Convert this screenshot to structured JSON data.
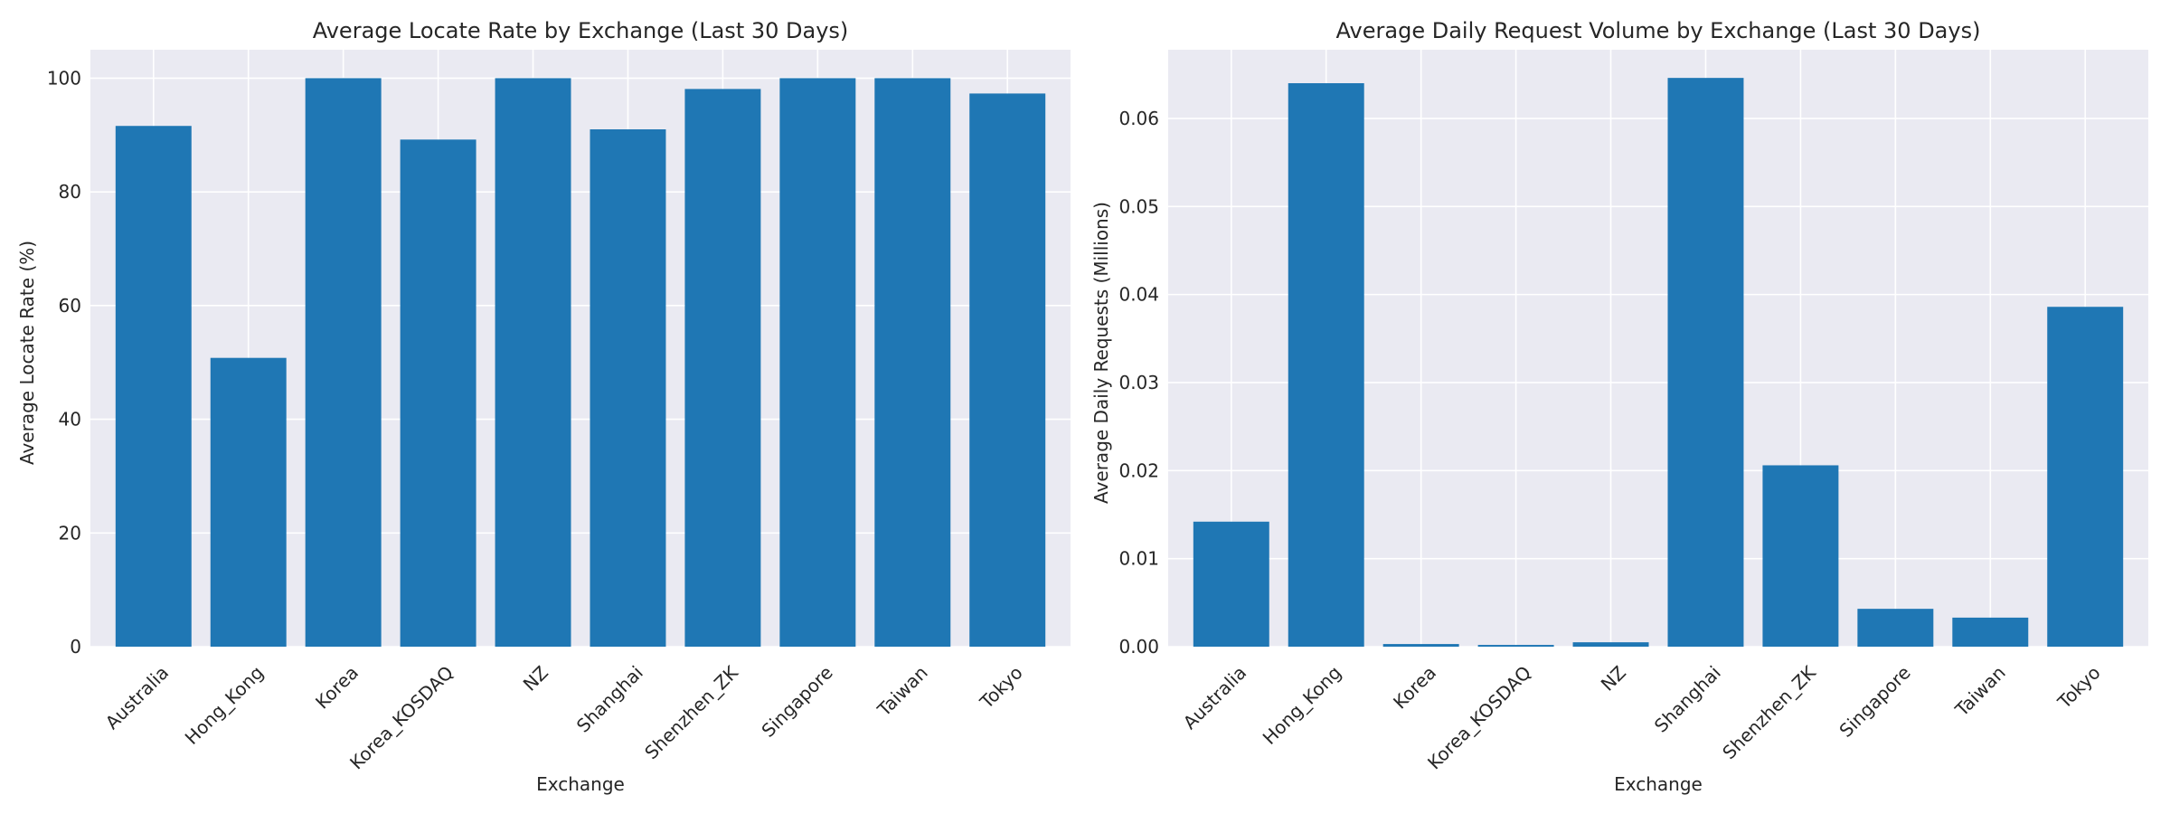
{
  "chart_data": [
    {
      "type": "bar",
      "title": "Average Locate Rate by Exchange (Last 30 Days)",
      "xlabel": "Exchange",
      "ylabel": "Average Locate Rate (%)",
      "categories": [
        "Australia",
        "Hong_Kong",
        "Korea",
        "Korea_KOSDAQ",
        "NZ",
        "Shanghai",
        "Shenzhen_ZK",
        "Singapore",
        "Taiwan",
        "Tokyo"
      ],
      "values": [
        91.6,
        50.8,
        100.0,
        89.2,
        100.0,
        91.0,
        98.1,
        100.0,
        100.0,
        97.3
      ],
      "ylim": [
        0,
        105
      ],
      "yticks": [
        0,
        20,
        40,
        60,
        80,
        100
      ],
      "ytick_labels": [
        "0",
        "20",
        "40",
        "60",
        "80",
        "100"
      ],
      "grid": true,
      "legend": "none",
      "bar_color": "#1f77b4",
      "background_color": "#eaeaf2"
    },
    {
      "type": "bar",
      "title": "Average Daily Request Volume by Exchange (Last 30 Days)",
      "xlabel": "Exchange",
      "ylabel": "Average Daily Requests (Millions)",
      "categories": [
        "Australia",
        "Hong_Kong",
        "Korea",
        "Korea_KOSDAQ",
        "NZ",
        "Shanghai",
        "Shenzhen_ZK",
        "Singapore",
        "Taiwan",
        "Tokyo"
      ],
      "values": [
        0.0142,
        0.064,
        0.0003,
        0.0002,
        0.0005,
        0.0646,
        0.0206,
        0.0043,
        0.0033,
        0.0386
      ],
      "ylim": [
        0,
        0.0678
      ],
      "yticks": [
        0,
        0.01,
        0.02,
        0.03,
        0.04,
        0.05,
        0.06
      ],
      "ytick_labels": [
        "0.00",
        "0.01",
        "0.02",
        "0.03",
        "0.04",
        "0.05",
        "0.06"
      ],
      "grid": true,
      "legend": "none",
      "bar_color": "#1f77b4",
      "background_color": "#eaeaf2"
    }
  ]
}
